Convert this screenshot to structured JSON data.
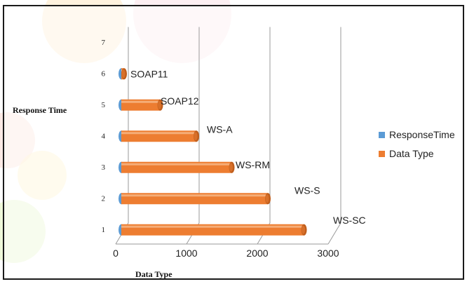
{
  "chart_data": {
    "type": "bar",
    "orientation": "horizontal",
    "title": "",
    "xlabel": "Data Type",
    "ylabel": "Response Time",
    "xlim": [
      0,
      3000
    ],
    "x_ticks": [
      "0",
      "1000",
      "2000",
      "3000"
    ],
    "y_ticks": [
      "1",
      "2",
      "3",
      "4",
      "5",
      "6",
      "7"
    ],
    "grid": "vertical",
    "legend_position": "right",
    "categories": [
      "1",
      "2",
      "3",
      "4",
      "5",
      "6"
    ],
    "series": [
      {
        "name": "ResponseTime",
        "color": "#5b9bd5",
        "values": [
          1,
          2,
          3,
          4,
          5,
          6
        ]
      },
      {
        "name": "Data Type",
        "color": "#ed7d31",
        "values": [
          2580,
          2070,
          1560,
          1060,
          550,
          40
        ]
      }
    ],
    "bar_labels": [
      "WS-SC",
      "WS-S",
      "WS-RM",
      "WS-A",
      "SOAP12",
      "SOAP11"
    ]
  }
}
